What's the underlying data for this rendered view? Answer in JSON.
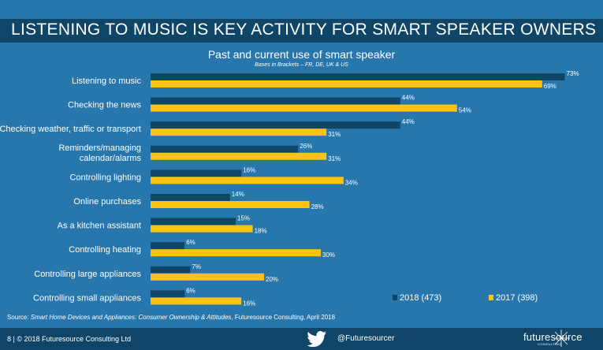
{
  "header": {
    "title": "LISTENING TO MUSIC IS KEY ACTIVITY FOR SMART SPEAKER OWNERS"
  },
  "chart_data": {
    "type": "bar",
    "orientation": "horizontal",
    "title": "Past and current use of smart speaker",
    "subtitle": "Bases in Brackets – FR, DE, UK & US",
    "categories": [
      "Listening to music",
      "Checking the news",
      "Checking weather, traffic or transport",
      "Reminders/managing calendar/alarms",
      "Controlling lighting",
      "Online purchases",
      "As a kitchen assistant",
      "Controlling heating",
      "Controlling large appliances",
      "Controlling small appliances"
    ],
    "series": [
      {
        "name": "2018 (473)",
        "color": "#0f4668",
        "values": [
          73,
          44,
          44,
          26,
          16,
          14,
          15,
          6,
          7,
          6
        ]
      },
      {
        "name": "2017 (398)",
        "color": "#fdc311",
        "values": [
          69,
          54,
          31,
          31,
          34,
          28,
          18,
          30,
          20,
          16
        ]
      }
    ],
    "value_suffix": "%",
    "xlim": [
      0,
      100
    ],
    "grid": false,
    "legend_position": "bottom-right"
  },
  "source": {
    "prefix": "Source: ",
    "italic": "Smart Home Devices and Appliances: Consumer Ownership & Attitudes",
    "suffix": ", Futuresource Consulting, April 2018"
  },
  "footer": {
    "page": "8  |  © 2018 Futuresource Consulting Ltd",
    "handle": "@Futuresourcer",
    "logo_text": "futuresource",
    "logo_sub": "CONSULTING"
  },
  "icons": {
    "twitter": "twitter-bird-icon",
    "logo_mark": "star-burst-icon"
  }
}
